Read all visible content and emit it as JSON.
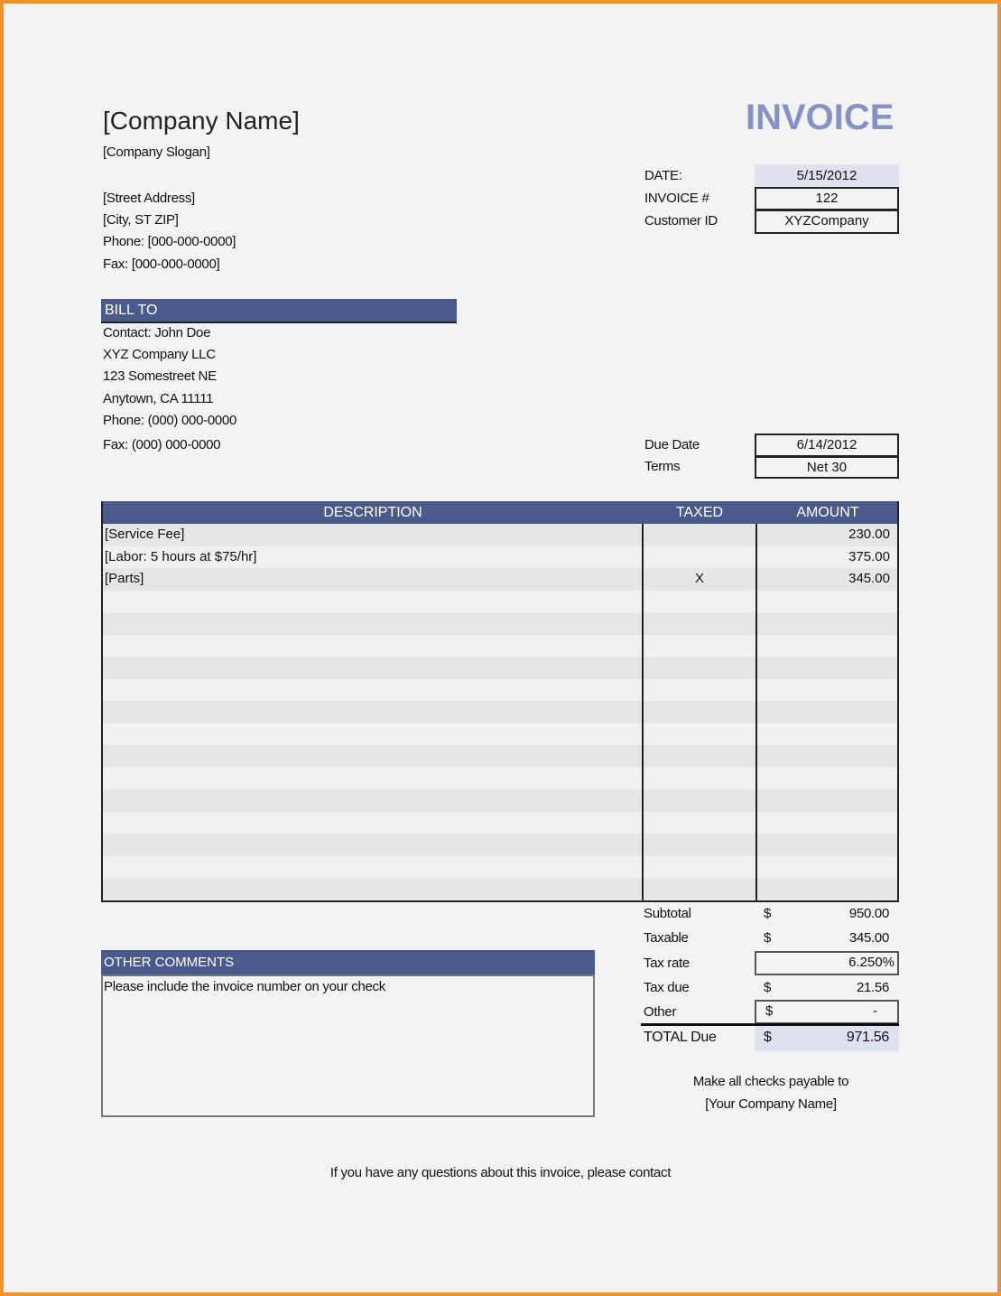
{
  "header": {
    "company_name": "[Company Name]",
    "slogan": "[Company Slogan]",
    "street": "[Street Address]",
    "city": "[City, ST  ZIP]",
    "phone": "Phone: [000-000-0000]",
    "fax": "Fax: [000-000-0000]",
    "title": "INVOICE"
  },
  "meta": {
    "date_label": "DATE:",
    "date": "5/15/2012",
    "invoice_label": "INVOICE #",
    "invoice": "122",
    "customer_label": "Customer ID",
    "customer": "XYZCompany",
    "due_label": "Due Date",
    "due": "6/14/2012",
    "terms_label": "Terms",
    "terms": "Net 30"
  },
  "bill_to": {
    "heading": "BILL TO",
    "lines": [
      "Contact: John Doe",
      "XYZ Company LLC",
      "123 Somestreet NE",
      "Anytown, CA 11111",
      "Phone: (000) 000-0000",
      "Fax: (000) 000-0000"
    ]
  },
  "table": {
    "headers": {
      "description": "DESCRIPTION",
      "taxed": "TAXED",
      "amount": "AMOUNT"
    },
    "items": [
      {
        "description": "[Service Fee]",
        "taxed": "",
        "amount": "230.00"
      },
      {
        "description": "[Labor: 5 hours at $75/hr]",
        "taxed": "",
        "amount": "375.00"
      },
      {
        "description": "[Parts]",
        "taxed": "X",
        "amount": "345.00"
      }
    ]
  },
  "totals": {
    "subtotal_label": "Subtotal",
    "subtotal": "950.00",
    "taxable_label": "Taxable",
    "taxable": "345.00",
    "taxrate_label": "Tax rate",
    "taxrate": "6.250%",
    "taxdue_label": "Tax due",
    "taxdue": "21.56",
    "other_label": "Other",
    "other": "-",
    "total_label": "TOTAL Due",
    "total": "971.56",
    "currency": "$"
  },
  "comments": {
    "heading": "OTHER COMMENTS",
    "text": "Please include the invoice number on your check"
  },
  "footer": {
    "payable_line1": "Make all checks payable to",
    "payable_line2": "[Your Company Name]",
    "contact": "If you have any questions about this invoice, please contact"
  },
  "colors": {
    "accent": "#4a5a8a",
    "title": "#8493c4",
    "border": "#f0922e"
  }
}
